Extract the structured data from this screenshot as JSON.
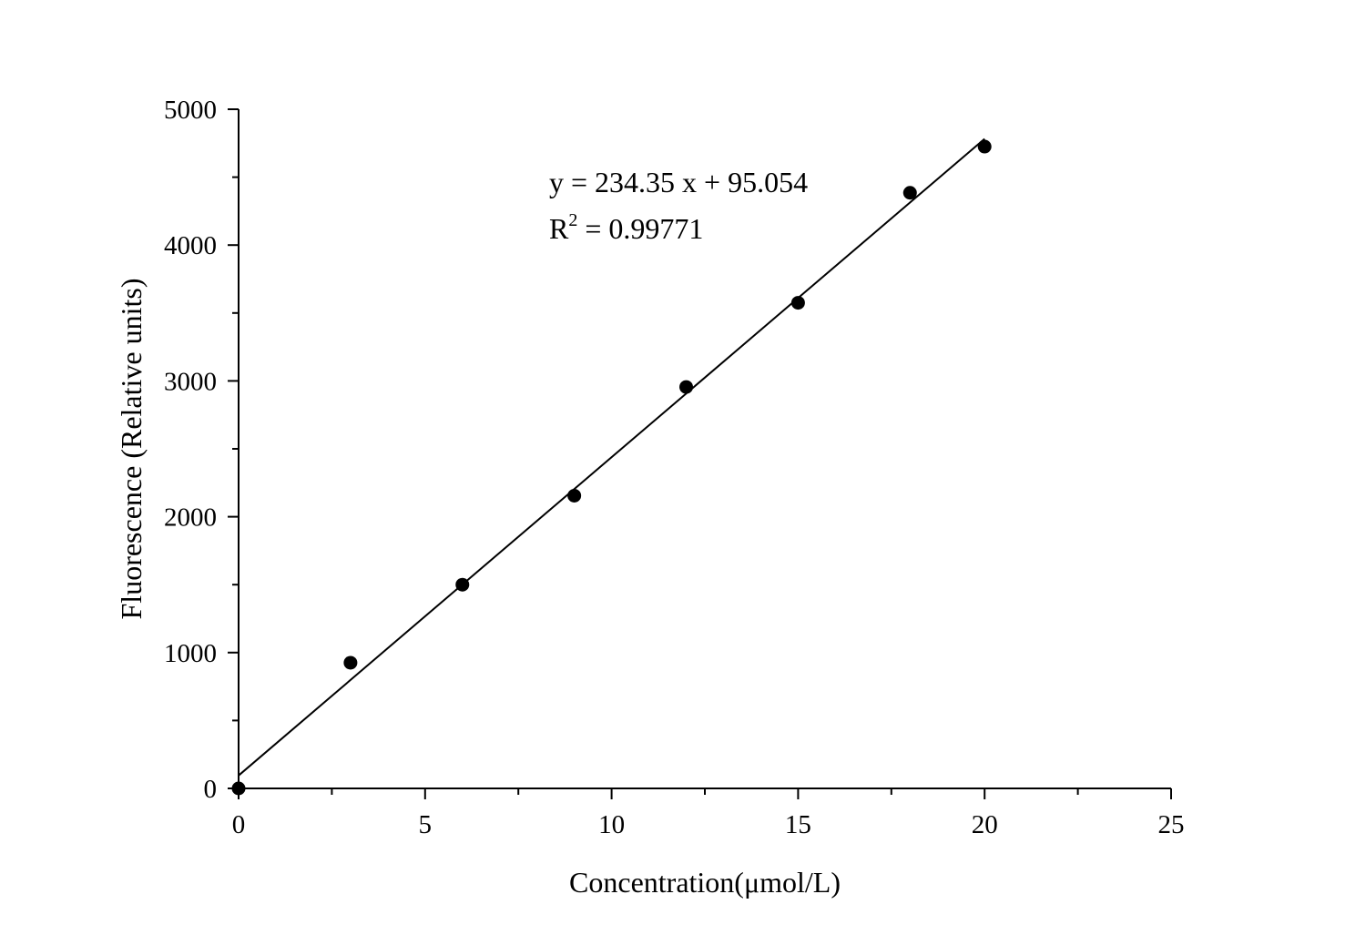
{
  "chart_data": {
    "type": "scatter",
    "title": "",
    "xlabel": "Concentration(μmol/L)",
    "ylabel": "Fluorescence (Relative units)",
    "xlim": [
      0,
      25
    ],
    "ylim": [
      0,
      5000
    ],
    "x_ticks": [
      "0",
      "5",
      "10",
      "15",
      "20",
      "25"
    ],
    "y_ticks": [
      "0",
      "1000",
      "2000",
      "3000",
      "4000",
      "5000"
    ],
    "grid": false,
    "legend": "none",
    "series": [
      {
        "x": [
          0,
          3,
          6,
          9,
          12,
          15,
          18,
          20
        ],
        "y": [
          0,
          925,
          1500,
          2155,
          2955,
          3575,
          4385,
          4725
        ]
      }
    ],
    "fit": {
      "slope": 234.35,
      "intercept": 95.054,
      "x_range": [
        0,
        20
      ]
    },
    "annotations": {
      "equation": "y = 234.35 x + 95.054",
      "r2_label": "R",
      "r2_sup": "2",
      "r2_value": " = 0.99771"
    }
  }
}
